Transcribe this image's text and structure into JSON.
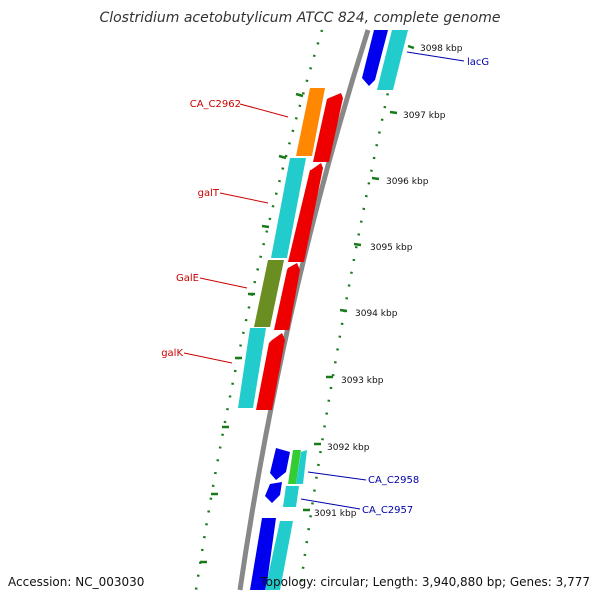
{
  "title": "Clostridium acetobutylicum ATCC 824, complete genome",
  "footer": {
    "accession": "Accession: NC_003030",
    "topology": "Topology: circular; Length: 3,940,880 bp; Genes: 3,777"
  },
  "colors": {
    "backbone": "#888888",
    "tick": "#1a7a1a",
    "label_left": "#cc0000",
    "label_right": "#0000aa",
    "blue": "#0000ee",
    "cyan": "#22cccc",
    "red": "#ee0000",
    "orange": "#ff8800",
    "olive": "#6b8e23",
    "green": "#33cc33"
  },
  "kbp_labels": [
    "3098 kbp",
    "3097 kbp",
    "3096 kbp",
    "3095 kbp",
    "3094 kbp",
    "3093 kbp",
    "3092 kbp",
    "3091 kbp"
  ],
  "gene_labels_left": [
    "CA_C2962",
    "galT",
    "GalE",
    "galK"
  ],
  "gene_labels_right": [
    "lacG",
    "CA_C2958",
    "CA_C2957"
  ]
}
